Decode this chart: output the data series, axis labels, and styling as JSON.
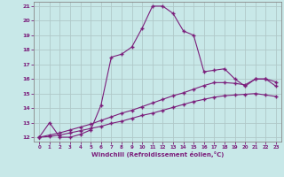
{
  "xlabel": "Windchill (Refroidissement éolien,°C)",
  "background_color": "#c8e8e8",
  "line_color": "#7b1e7b",
  "grid_color": "#b0c8c8",
  "xlim": [
    -0.5,
    23.5
  ],
  "ylim": [
    11.7,
    21.3
  ],
  "xticks": [
    0,
    1,
    2,
    3,
    4,
    5,
    6,
    7,
    8,
    9,
    10,
    11,
    12,
    13,
    14,
    15,
    16,
    17,
    18,
    19,
    20,
    21,
    22,
    23
  ],
  "yticks": [
    12,
    13,
    14,
    15,
    16,
    17,
    18,
    19,
    20,
    21
  ],
  "curve1_x": [
    0,
    1,
    2,
    3,
    4,
    5,
    6,
    7,
    8,
    9,
    10,
    11,
    12,
    13,
    14,
    15,
    16,
    17,
    18,
    19,
    20,
    21,
    22,
    23
  ],
  "curve1_y": [
    12.0,
    13.0,
    12.0,
    12.0,
    12.2,
    12.5,
    14.2,
    17.5,
    17.7,
    18.2,
    19.5,
    21.0,
    21.0,
    20.5,
    19.3,
    19.0,
    16.5,
    16.6,
    16.7,
    16.0,
    15.5,
    16.0,
    16.0,
    15.8
  ],
  "curve2_x": [
    0,
    1,
    2,
    3,
    4,
    5,
    6,
    7,
    8,
    9,
    10,
    11,
    12,
    13,
    14,
    15,
    16,
    17,
    18,
    19,
    20,
    21,
    22,
    23
  ],
  "curve2_y": [
    12.0,
    12.15,
    12.3,
    12.5,
    12.7,
    12.9,
    13.15,
    13.4,
    13.65,
    13.85,
    14.1,
    14.35,
    14.6,
    14.85,
    15.05,
    15.3,
    15.55,
    15.75,
    15.75,
    15.7,
    15.6,
    16.0,
    16.0,
    15.5
  ],
  "curve3_x": [
    0,
    1,
    2,
    3,
    4,
    5,
    6,
    7,
    8,
    9,
    10,
    11,
    12,
    13,
    14,
    15,
    16,
    17,
    18,
    19,
    20,
    21,
    22,
    23
  ],
  "curve3_y": [
    12.0,
    12.05,
    12.15,
    12.3,
    12.45,
    12.6,
    12.75,
    12.95,
    13.1,
    13.3,
    13.5,
    13.65,
    13.85,
    14.05,
    14.25,
    14.45,
    14.6,
    14.75,
    14.85,
    14.9,
    14.95,
    15.0,
    14.9,
    14.8
  ]
}
